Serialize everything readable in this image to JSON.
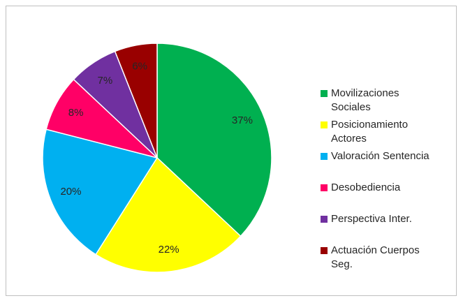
{
  "chart_data": {
    "type": "pie",
    "categories": [
      "Movilizaciones Sociales",
      "Posicionamiento Actores",
      "Valoración Sentencia",
      "Desobediencia",
      "Perspectiva Inter.",
      "Actuación Cuerpos Seg."
    ],
    "values": [
      37,
      22,
      20,
      8,
      7,
      6
    ],
    "value_labels": [
      "37%",
      "22%",
      "20%",
      "8%",
      "7%",
      "6%"
    ],
    "colors": [
      "#00b050",
      "#ffff00",
      "#00b0f0",
      "#ff0066",
      "#7030a0",
      "#990000"
    ],
    "legend": "right"
  }
}
